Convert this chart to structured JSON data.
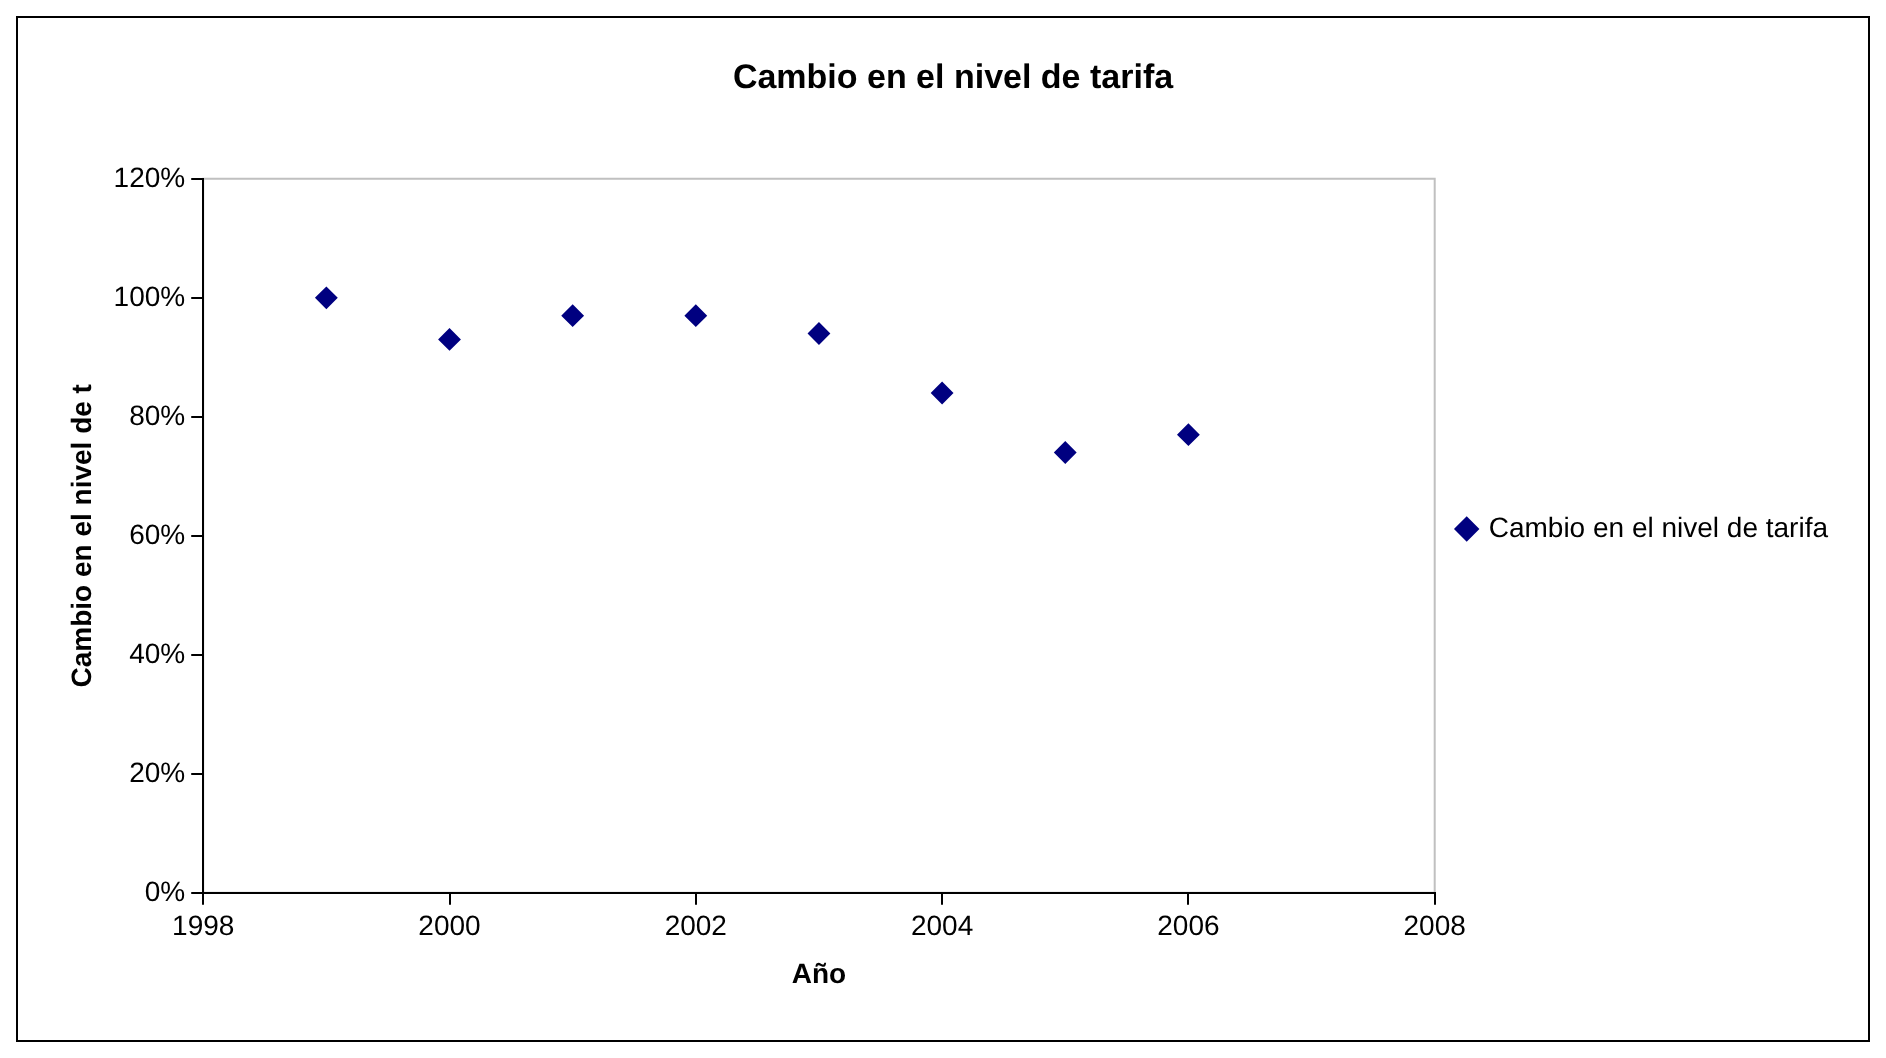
{
  "chart_data": {
    "type": "scatter",
    "title": "Cambio en el nivel de tarifa",
    "xlabel": "Año",
    "ylabel": "Cambio en el nivel de t",
    "x": [
      1999,
      2000,
      2001,
      2002,
      2003,
      2004,
      2005,
      2006
    ],
    "series": [
      {
        "name": "Cambio en el nivel de tarifa",
        "color": "#000080",
        "values": [
          100,
          93,
          97,
          97,
          94,
          84,
          74,
          77
        ]
      }
    ],
    "xlim": [
      1998,
      2008
    ],
    "xticks": [
      1998,
      2000,
      2002,
      2004,
      2006,
      2008
    ],
    "ylim": [
      0,
      120
    ],
    "yticks": [
      {
        "value": 0,
        "label": "0%"
      },
      {
        "value": 20,
        "label": "20%"
      },
      {
        "value": 40,
        "label": "40%"
      },
      {
        "value": 60,
        "label": "60%"
      },
      {
        "value": 80,
        "label": "80%"
      },
      {
        "value": 100,
        "label": "100%"
      },
      {
        "value": 120,
        "label": "120%"
      }
    ],
    "grid": false,
    "legend": "right",
    "marker": "diamond"
  }
}
